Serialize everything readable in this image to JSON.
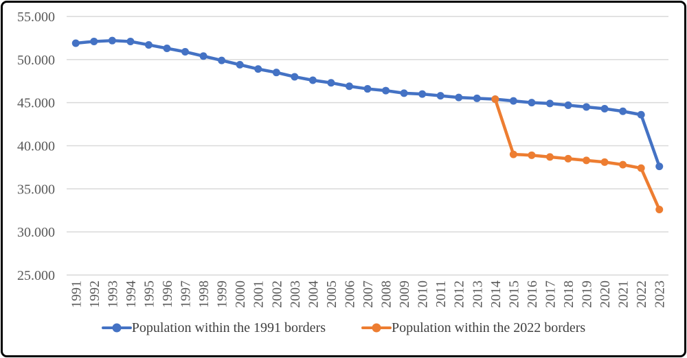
{
  "chart_data": {
    "type": "line",
    "title": "",
    "xlabel": "",
    "ylabel": "",
    "x": [
      "1991",
      "1992",
      "1993",
      "1994",
      "1995",
      "1996",
      "1997",
      "1998",
      "1999",
      "2000",
      "2001",
      "2002",
      "2003",
      "2004",
      "2005",
      "2006",
      "2007",
      "2008",
      "2009",
      "2010",
      "2011",
      "2012",
      "2013",
      "2014",
      "2015",
      "2016",
      "2017",
      "2018",
      "2019",
      "2020",
      "2021",
      "2022",
      "2023"
    ],
    "series": [
      {
        "name": "Population within the 1991 borders",
        "color": "#4472C4",
        "values": [
          51900,
          52100,
          52200,
          52100,
          51700,
          51300,
          50900,
          50400,
          49900,
          49400,
          48900,
          48500,
          48000,
          47600,
          47300,
          46900,
          46600,
          46400,
          46100,
          46000,
          45800,
          45600,
          45500,
          45400,
          45200,
          45000,
          44900,
          44700,
          44500,
          44300,
          44000,
          43600,
          37600
        ]
      },
      {
        "name": "Population within the 2022 borders",
        "color": "#ED7D31",
        "values": [
          null,
          null,
          null,
          null,
          null,
          null,
          null,
          null,
          null,
          null,
          null,
          null,
          null,
          null,
          null,
          null,
          null,
          null,
          null,
          null,
          null,
          null,
          null,
          45400,
          39000,
          38900,
          38700,
          38500,
          38300,
          38100,
          37800,
          37400,
          32600
        ]
      }
    ],
    "ylim": [
      25000,
      55000
    ],
    "yticks": {
      "values": [
        25000,
        30000,
        35000,
        40000,
        45000,
        50000,
        55000
      ],
      "labels": [
        "25.000",
        "30.000",
        "35.000",
        "40.000",
        "45.000",
        "50.000",
        "55.000"
      ]
    },
    "grid": "horizontal-only",
    "gridline_color": "#D9D9D9",
    "axis_label_color": "#595959",
    "legend_position": "bottom-center",
    "x_labels_rotation": "vertical"
  }
}
